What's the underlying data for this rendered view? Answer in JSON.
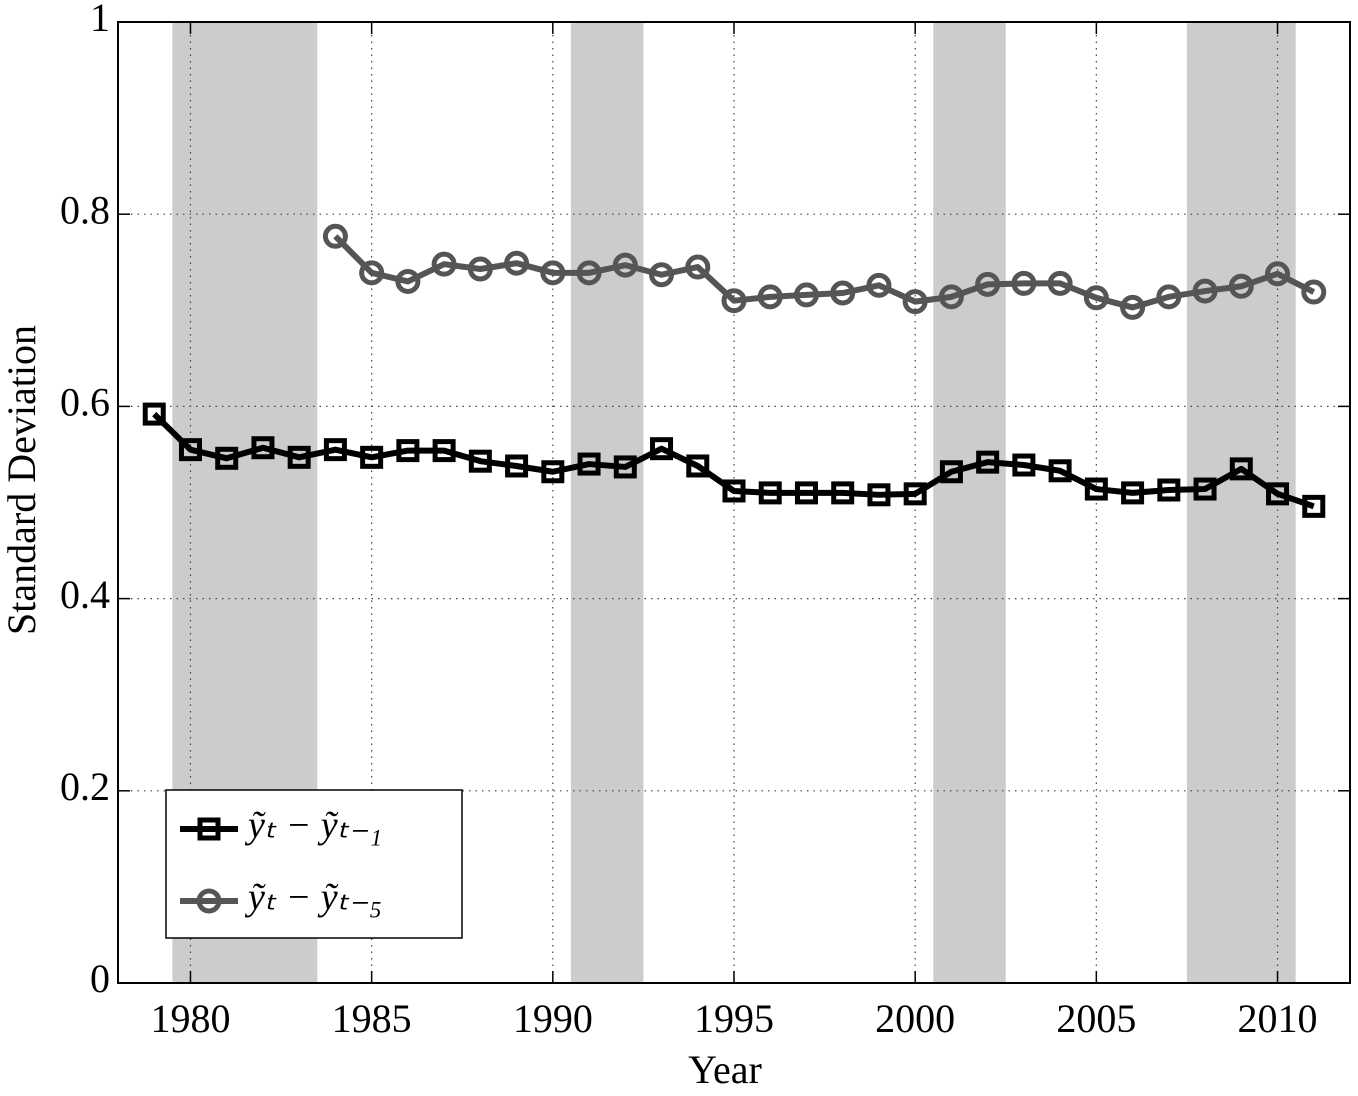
{
  "chart_data": {
    "type": "line",
    "x_label": "Year",
    "y_label": "Standard Deviation",
    "x": [
      1979,
      1980,
      1981,
      1982,
      1983,
      1984,
      1985,
      1986,
      1987,
      1988,
      1989,
      1990,
      1991,
      1992,
      1993,
      1994,
      1995,
      1996,
      1997,
      1998,
      1999,
      2000,
      2001,
      2002,
      2003,
      2004,
      2005,
      2006,
      2007,
      2008,
      2009,
      2010,
      2011
    ],
    "series": [
      {
        "name": "ỹₜ − ỹₜ₋₁",
        "color": "#000000",
        "marker": "square",
        "values": [
          0.592,
          0.555,
          0.546,
          0.557,
          0.547,
          0.555,
          0.547,
          0.554,
          0.554,
          0.543,
          0.538,
          0.532,
          0.54,
          0.537,
          0.556,
          0.538,
          0.512,
          0.51,
          0.51,
          0.51,
          0.508,
          0.509,
          0.532,
          0.542,
          0.539,
          0.533,
          0.514,
          0.51,
          0.513,
          0.514,
          0.535,
          0.509,
          0.496
        ]
      },
      {
        "name": "ỹₜ − ỹₜ₋₅",
        "color": "#555555",
        "marker": "circle",
        "values": [
          null,
          null,
          null,
          null,
          null,
          0.777,
          0.739,
          0.73,
          0.748,
          0.743,
          0.749,
          0.739,
          0.739,
          0.747,
          0.737,
          0.745,
          0.71,
          0.714,
          0.716,
          0.718,
          0.726,
          0.709,
          0.714,
          0.727,
          0.728,
          0.728,
          0.713,
          0.703,
          0.714,
          0.72,
          0.725,
          0.738,
          0.719
        ]
      }
    ],
    "shaded": [
      [
        1979.5,
        1983.5
      ],
      [
        1990.5,
        1992.5
      ],
      [
        2000.5,
        2002.5
      ],
      [
        2007.5,
        2010.5
      ]
    ],
    "shade_color": "#cccccc",
    "xlim": [
      1978,
      2012
    ],
    "xticks": [
      1980,
      1985,
      1990,
      1995,
      2000,
      2005,
      2010
    ],
    "ylim": [
      0,
      1
    ],
    "yticks": [
      0,
      0.2,
      0.4,
      0.6,
      0.8,
      1
    ],
    "grid": true,
    "legend": "lower left"
  }
}
